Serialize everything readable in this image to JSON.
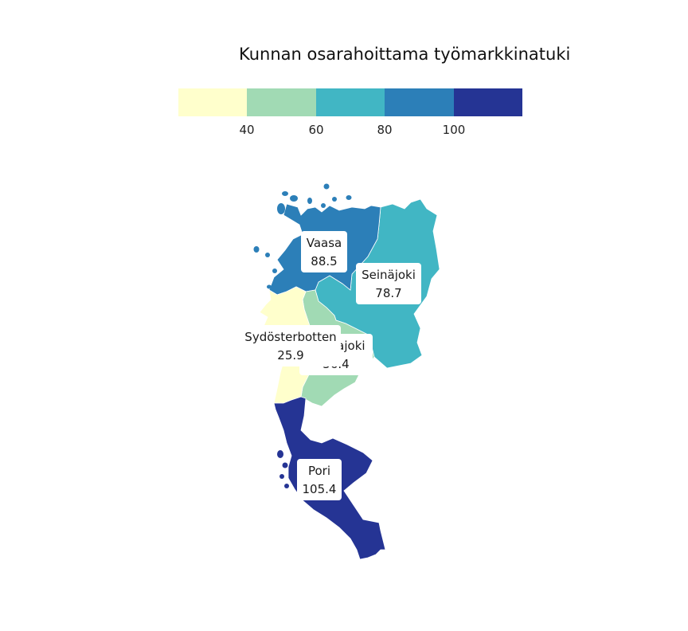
{
  "legend": {
    "title": "Kunnan osarahoittama työmarkkinatuki",
    "colors": [
      "#ffffcc",
      "#a1dab4",
      "#41b6c4",
      "#2c7fb8",
      "#253494"
    ],
    "ticks": [
      "40",
      "60",
      "80",
      "100"
    ]
  },
  "regions": [
    {
      "key": "vaasa",
      "name": "Vaasa",
      "value": "88.5",
      "color": "#2c7fb8"
    },
    {
      "key": "seinajoki",
      "name": "Seinäjoki",
      "value": "78.7",
      "color": "#41b6c4"
    },
    {
      "key": "kauhajoki",
      "name": "Kauhajoki",
      "value": "56.4",
      "color": "#a1dab4"
    },
    {
      "key": "sydosterbotten",
      "name": "Sydösterbotten",
      "value": "25.9",
      "color": "#ffffcc"
    },
    {
      "key": "pori",
      "name": "Pori",
      "value": "105.4",
      "color": "#253494"
    }
  ]
}
